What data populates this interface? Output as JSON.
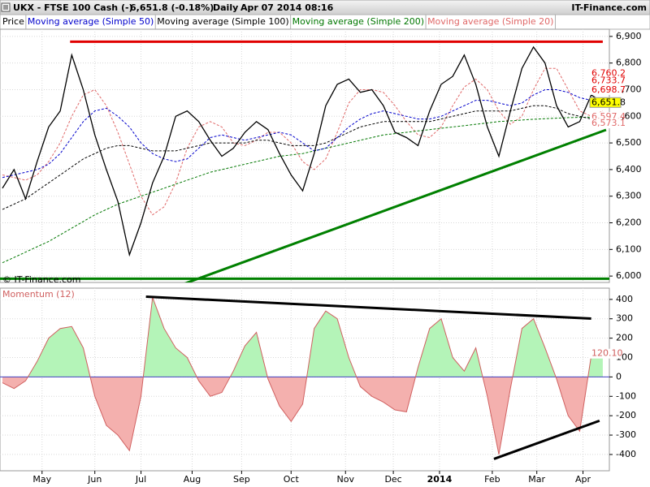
{
  "header": {
    "symbol": "UKX - FTSE 100 Cash (-)",
    "quote": "6,651.8 (-0.18%)",
    "period": "Daily",
    "datetime": "Apr 07 2014 08:16",
    "brand": "IT-Finance.com"
  },
  "chart_data": [
    {
      "type": "line",
      "annotation": "© IT-Finance.com",
      "x": [
        0,
        7,
        14,
        21,
        28,
        35,
        42,
        49,
        56,
        63,
        70,
        77,
        84,
        91,
        98,
        105,
        112,
        119,
        126,
        133,
        140,
        147,
        154,
        161,
        168,
        175,
        182,
        189,
        196,
        203,
        210,
        217,
        224,
        231,
        238,
        245,
        252,
        259,
        266,
        273,
        280,
        287,
        294,
        301,
        308,
        315,
        322,
        329,
        336,
        343,
        350,
        357,
        364
      ],
      "xlim": [
        -1.5,
        368
      ],
      "ylim": [
        5976,
        6927
      ],
      "yticks": [
        {
          "value": 6000,
          "label": "6,000"
        },
        {
          "value": 6100,
          "label": "6,100"
        },
        {
          "value": 6200,
          "label": "6,200"
        },
        {
          "value": 6300,
          "label": "6,300"
        },
        {
          "value": 6400,
          "label": "6,400"
        },
        {
          "value": 6500,
          "label": "6,500"
        },
        {
          "value": 6600,
          "label": "6,600"
        },
        {
          "value": 6700,
          "label": "6,700"
        },
        {
          "value": 6800,
          "label": "6,800"
        },
        {
          "value": 6900,
          "label": "6,900"
        }
      ],
      "grid": true,
      "series": [
        {
          "name": "Price",
          "color": "#000000",
          "dash": false,
          "values": [
            6330,
            6400,
            6290,
            6430,
            6560,
            6620,
            6830,
            6700,
            6530,
            6400,
            6280,
            6080,
            6200,
            6350,
            6450,
            6600,
            6620,
            6580,
            6510,
            6450,
            6480,
            6540,
            6580,
            6550,
            6460,
            6380,
            6320,
            6460,
            6640,
            6720,
            6740,
            6690,
            6700,
            6640,
            6540,
            6520,
            6490,
            6620,
            6720,
            6750,
            6830,
            6720,
            6560,
            6450,
            6620,
            6780,
            6860,
            6800,
            6640,
            6560,
            6580,
            6680,
            6651.8
          ]
        },
        {
          "name": "Moving average (Simple 50)",
          "color": "#0000cc",
          "dash": true,
          "values": [
            6370,
            6380,
            6390,
            6400,
            6420,
            6460,
            6520,
            6580,
            6620,
            6630,
            6600,
            6560,
            6500,
            6460,
            6440,
            6430,
            6440,
            6480,
            6520,
            6530,
            6520,
            6510,
            6520,
            6530,
            6540,
            6530,
            6500,
            6470,
            6480,
            6520,
            6560,
            6590,
            6610,
            6620,
            6610,
            6600,
            6590,
            6590,
            6600,
            6620,
            6640,
            6660,
            6660,
            6650,
            6640,
            6650,
            6680,
            6700,
            6700,
            6690,
            6670,
            6660,
            6660
          ]
        },
        {
          "name": "Moving average (Simple 100)",
          "color": "#000000",
          "dash": true,
          "values": [
            6250,
            6270,
            6290,
            6320,
            6350,
            6380,
            6410,
            6440,
            6460,
            6480,
            6490,
            6490,
            6480,
            6470,
            6470,
            6470,
            6480,
            6490,
            6500,
            6500,
            6500,
            6500,
            6510,
            6510,
            6500,
            6490,
            6490,
            6490,
            6500,
            6520,
            6540,
            6560,
            6570,
            6580,
            6580,
            6580,
            6580,
            6580,
            6590,
            6600,
            6610,
            6620,
            6620,
            6620,
            6620,
            6630,
            6640,
            6640,
            6630,
            6610,
            6600,
            6590,
            6600
          ]
        },
        {
          "name": "Moving average (Simple 200)",
          "color": "#007700",
          "dash": true,
          "values": [
            6050,
            6070,
            6090,
            6110,
            6130,
            6155,
            6180,
            6205,
            6230,
            6250,
            6270,
            6285,
            6300,
            6315,
            6330,
            6345,
            6360,
            6375,
            6390,
            6400,
            6410,
            6420,
            6430,
            6440,
            6450,
            6455,
            6460,
            6470,
            6480,
            6490,
            6500,
            6510,
            6520,
            6530,
            6535,
            6540,
            6545,
            6550,
            6555,
            6560,
            6565,
            6570,
            6575,
            6580,
            6583,
            6586,
            6589,
            6591,
            6593,
            6595,
            6596,
            6597,
            6597
          ]
        },
        {
          "name": "Moving average (Simple 20)",
          "color": "#e06868",
          "dash": true,
          "values": [
            6380,
            6370,
            6360,
            6380,
            6430,
            6500,
            6600,
            6680,
            6700,
            6640,
            6540,
            6420,
            6300,
            6230,
            6260,
            6350,
            6480,
            6560,
            6580,
            6560,
            6500,
            6490,
            6510,
            6540,
            6540,
            6500,
            6430,
            6400,
            6440,
            6540,
            6650,
            6700,
            6700,
            6690,
            6640,
            6580,
            6530,
            6520,
            6560,
            6640,
            6710,
            6740,
            6700,
            6620,
            6570,
            6600,
            6700,
            6780,
            6780,
            6700,
            6620,
            6600,
            6620
          ]
        }
      ],
      "axis_tags": [
        {
          "value": 6760.2,
          "label": "6,760.2",
          "color": "#e00000",
          "background": "#ffffff"
        },
        {
          "value": 6733.7,
          "label": "6,733.7",
          "color": "#e00000",
          "background": "#ffffff"
        },
        {
          "value": 6698.7,
          "label": "6,698.7",
          "color": "#e00000",
          "background": "#ffffff"
        },
        {
          "value": 6651.8,
          "label": "6,651.8",
          "color": "#000000",
          "background": "#ffff00"
        },
        {
          "value": 6597.4,
          "label": "6,597.4",
          "color": "#e06868",
          "background": "#ffffff"
        },
        {
          "value": 6573.1,
          "label": "6,573.1",
          "color": "#e06868",
          "background": "#ffffff"
        }
      ],
      "lines": [
        {
          "x": [
            41,
            364
          ],
          "y": [
            6880,
            6880
          ],
          "color": "#e00000"
        },
        {
          "x": [
            107,
            366
          ],
          "y": [
            5964,
            6549
          ],
          "color": "#008000"
        },
        {
          "x": [
            -1.5,
            368
          ],
          "y": [
            5990,
            5990
          ],
          "color": "#008000"
        }
      ]
    },
    {
      "type": "area",
      "x": [
        0,
        7,
        14,
        21,
        28,
        35,
        42,
        49,
        56,
        63,
        70,
        77,
        84,
        91,
        98,
        105,
        112,
        119,
        126,
        133,
        140,
        147,
        154,
        161,
        168,
        175,
        182,
        189,
        196,
        203,
        210,
        217,
        224,
        231,
        238,
        245,
        252,
        259,
        266,
        273,
        280,
        287,
        294,
        301,
        308,
        315,
        322,
        329,
        336,
        343,
        350,
        357,
        364
      ],
      "xlim": [
        -1.5,
        368
      ],
      "ylim": [
        -484,
        458
      ],
      "yticks": [
        -400,
        -300,
        -200,
        -100,
        0,
        100,
        200,
        300,
        400
      ],
      "xticks": [
        {
          "value": 24,
          "label": "May"
        },
        {
          "value": 56,
          "label": "Jun"
        },
        {
          "value": 84,
          "label": "Jul"
        },
        {
          "value": 115,
          "label": "Aug"
        },
        {
          "value": 145,
          "label": "Sep"
        },
        {
          "value": 175,
          "label": "Oct"
        },
        {
          "value": 208,
          "label": "Nov"
        },
        {
          "value": 237,
          "label": "Dec"
        },
        {
          "value": 265,
          "label": "2014",
          "bold": true
        },
        {
          "value": 297,
          "label": "Feb"
        },
        {
          "value": 324,
          "label": "Mar"
        },
        {
          "value": 352,
          "label": "Apr"
        }
      ],
      "grid": true,
      "zero_color": "#4040c0",
      "series": [
        {
          "name": "Momentum (12)",
          "color": "#d06060",
          "positive_color": "#b4f4b8",
          "negative_color": "#f4b0ae",
          "values": [
            -30,
            -60,
            -20,
            80,
            200,
            250,
            260,
            150,
            -100,
            -250,
            -300,
            -380,
            -100,
            410,
            250,
            150,
            100,
            -20,
            -100,
            -80,
            30,
            160,
            230,
            -10,
            -150,
            -230,
            -140,
            250,
            340,
            300,
            100,
            -50,
            -100,
            -130,
            -170,
            -180,
            50,
            250,
            300,
            100,
            30,
            150,
            -100,
            -400,
            -60,
            250,
            300,
            150,
            -10,
            -200,
            -280,
            110,
            120.1
          ]
        }
      ],
      "axis_tags": [
        {
          "value": 120.1,
          "label": "120.10",
          "color": "#d06060",
          "background": "#ffffff"
        }
      ],
      "lines": [
        {
          "x": [
            87,
            357
          ],
          "y": [
            414,
            301
          ],
          "color": "#000000"
        },
        {
          "x": [
            298,
            362
          ],
          "y": [
            -423,
            -226
          ],
          "color": "#000000"
        }
      ]
    }
  ]
}
